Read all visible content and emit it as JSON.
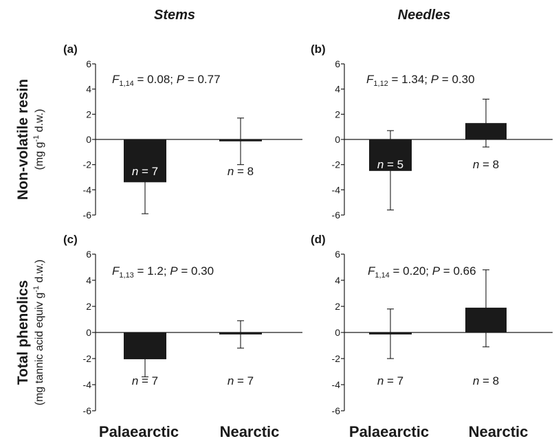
{
  "column_titles": [
    "Stems",
    "Needles"
  ],
  "row_titles": [
    {
      "main": "Non-volatile resin",
      "sub": [
        "(mg g",
        "-1",
        " d.w.)"
      ]
    },
    {
      "main": "Total phenolics",
      "sub": [
        "(mg tannic acid equiv g",
        "-1",
        " d.w.)"
      ]
    }
  ],
  "bottom_categories": [
    "Palaearctic",
    "Nearctic",
    "Palaearctic",
    "Nearctic"
  ],
  "chart_data": [
    {
      "type": "bar",
      "panel": "(a)",
      "column": "Stems",
      "row": "Non-volatile resin",
      "categories": [
        "Palaearctic",
        "Nearctic"
      ],
      "values": [
        -3.4,
        -0.15
      ],
      "error_upper": [
        0,
        1.7
      ],
      "error_lower": [
        -5.9,
        -2.0
      ],
      "n_labels": [
        {
          "pre": "n",
          "post": " = 7",
          "inverse": true
        },
        {
          "pre": "n",
          "post": " = 8",
          "inverse": false
        }
      ],
      "stat": {
        "pre": "F",
        "sub": "1,14",
        "mid": " = 0.08; ",
        "p": "P",
        "post": " = 0.77"
      },
      "ylim": [
        -6,
        6
      ],
      "yticks": [
        "6",
        "4",
        "2",
        "0",
        "-2",
        "-4",
        "-6"
      ]
    },
    {
      "type": "bar",
      "panel": "(b)",
      "column": "Needles",
      "row": "Non-volatile resin",
      "categories": [
        "Palaearctic",
        "Nearctic"
      ],
      "values": [
        -2.5,
        1.3
      ],
      "error_upper": [
        0.7,
        3.2
      ],
      "error_lower": [
        -5.6,
        -0.6
      ],
      "n_labels": [
        {
          "pre": "n",
          "post": " = 5",
          "inverse": true
        },
        {
          "pre": "n",
          "post": " = 8",
          "inverse": false
        }
      ],
      "stat": {
        "pre": "F",
        "sub": "1,12",
        "mid": " = 1.34; ",
        "p": "P",
        "post": " = 0.30"
      },
      "ylim": [
        -6,
        6
      ],
      "yticks": [
        "6",
        "4",
        "2",
        "0",
        "-2",
        "-4",
        "-6"
      ]
    },
    {
      "type": "bar",
      "panel": "(c)",
      "column": "Stems",
      "row": "Total phenolics",
      "categories": [
        "Palaearctic",
        "Nearctic"
      ],
      "values": [
        -2.05,
        -0.15
      ],
      "error_upper": [
        0,
        0.9
      ],
      "error_lower": [
        -3.4,
        -1.2
      ],
      "n_labels": [
        {
          "pre": "n",
          "post": " = 7",
          "inverse": false
        },
        {
          "pre": "n",
          "post": " = 7",
          "inverse": false
        }
      ],
      "stat": {
        "pre": "F",
        "sub": "1,13",
        "mid": " = 1.2; ",
        "p": "P",
        "post": " = 0.30"
      },
      "ylim": [
        -6,
        6
      ],
      "yticks": [
        "6",
        "4",
        "2",
        "0",
        "-2",
        "-4",
        "-6"
      ]
    },
    {
      "type": "bar",
      "panel": "(d)",
      "column": "Needles",
      "row": "Total phenolics",
      "categories": [
        "Palaearctic",
        "Nearctic"
      ],
      "values": [
        -0.15,
        1.9
      ],
      "error_upper": [
        1.8,
        4.8
      ],
      "error_lower": [
        -2.0,
        -1.1
      ],
      "n_labels": [
        {
          "pre": "n",
          "post": " = 7",
          "inverse": false
        },
        {
          "pre": "n",
          "post": " = 8",
          "inverse": false
        }
      ],
      "stat": {
        "pre": "F",
        "sub": "1,14",
        "mid": " = 0.20; ",
        "p": "P",
        "post": " = 0.66"
      },
      "ylim": [
        -6,
        6
      ],
      "yticks": [
        "6",
        "4",
        "2",
        "0",
        "-2",
        "-4",
        "-6"
      ]
    }
  ]
}
